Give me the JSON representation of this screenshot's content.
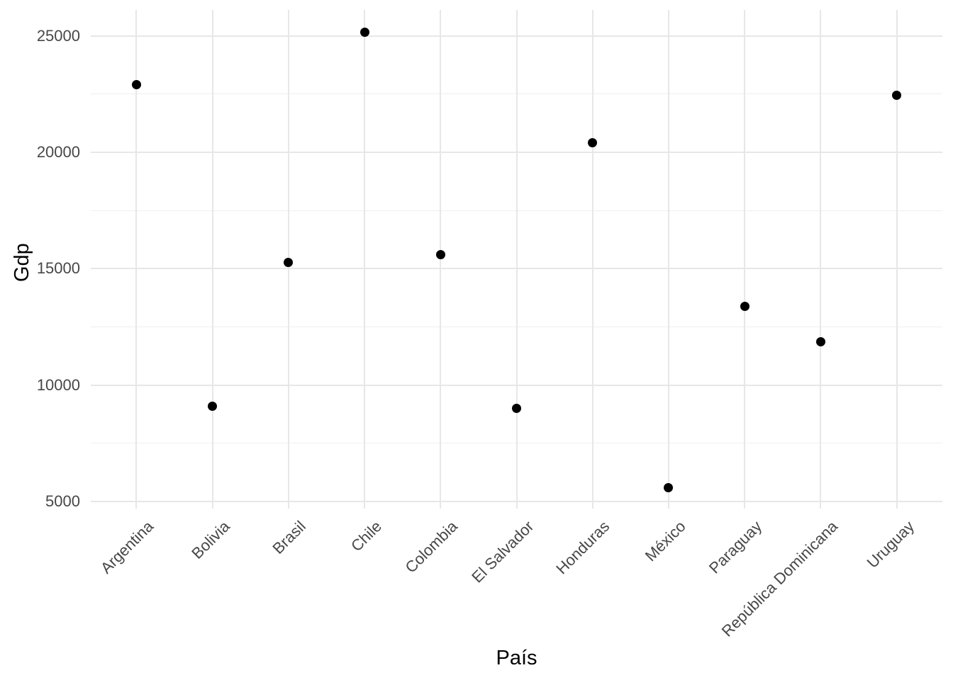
{
  "chart_data": {
    "type": "scatter",
    "title": "",
    "xlabel": "País",
    "ylabel": "Gdp",
    "categories": [
      "Argentina",
      "Bolivia",
      "Brasil",
      "Chile",
      "Colombia",
      "El Salvador",
      "Honduras",
      "México",
      "Paraguay",
      "República Dominicana",
      "Uruguay"
    ],
    "values": [
      22900,
      9100,
      15280,
      25150,
      15620,
      8990,
      20400,
      5600,
      13390,
      11850,
      22460
    ],
    "y_major_ticks": [
      25000,
      20000,
      15000,
      10000,
      5000
    ],
    "y_minor_ticks": [
      22500,
      17500,
      12500,
      7500
    ],
    "ylim": [
      4695,
      26120
    ],
    "grid": "on",
    "legend": "none",
    "x_label_rotation_deg": 45,
    "colors": {
      "point": "#000000",
      "grid_major": "#e7e7e7",
      "grid_minor": "#efefef",
      "tick_label": "#474747",
      "axis_title": "#000000",
      "background": "#ffffff"
    }
  }
}
